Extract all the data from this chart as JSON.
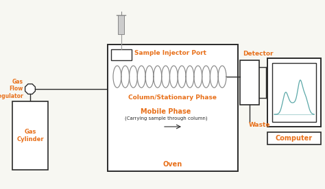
{
  "bg_color": "#f7f7f2",
  "orange": "#E8701A",
  "dark_gray": "#2a2a2a",
  "line_color": "#2a2a2a",
  "coil_color": "#888888",
  "teal": "#5BA8A8",
  "labels": {
    "gas_flow_regulator": "Gas\nFlow\nRegulator",
    "sample_injector_port": "Sample Injector Port",
    "column_stationary_phase": "Column/Stationary Phase",
    "mobile_phase": "Mobile Phase",
    "mobile_phase_sub": "(Carrying sample through column)",
    "oven": "Oven",
    "detector": "Detector",
    "waste": "Waste",
    "gas_cylinder": "Gas\nCylinder",
    "computer": "Computer"
  },
  "figsize": [
    4.74,
    2.76
  ],
  "dpi": 100
}
